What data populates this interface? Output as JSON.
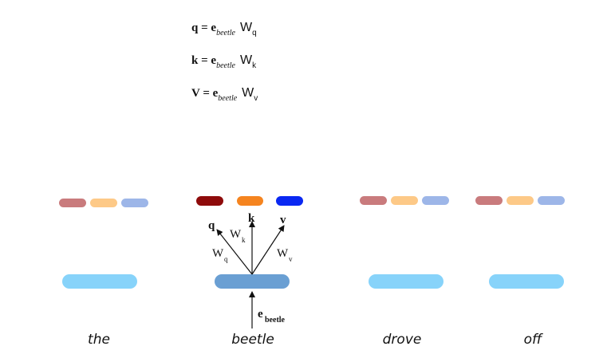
{
  "equations": [
    {
      "lhs": "q",
      "eq": " = ",
      "e": "e",
      "e_sub": "beetle",
      "w": "W",
      "w_sub": "q"
    },
    {
      "lhs": "k",
      "eq": " = ",
      "e": "e",
      "e_sub": "beetle",
      "w": "W",
      "w_sub": "k"
    },
    {
      "lhs": "V",
      "eq": " = ",
      "e": "e",
      "e_sub": "beetle",
      "w": "W",
      "w_sub": "v"
    }
  ],
  "words": [
    "the",
    "beetle",
    "drove",
    "off"
  ],
  "arrow_labels": {
    "q": "q",
    "k": "k",
    "v": "v",
    "wq_main": "W",
    "wq_sub": "q",
    "wk_main": "W",
    "wk_sub": "k",
    "wv_main": "W",
    "wv_sub": "v",
    "e_main": "e",
    "e_sub": "beetle"
  },
  "colors": {
    "embedding_other": "#87d3fa",
    "embedding_focus": "#6a9fd3",
    "q_faded": "#c97b7d",
    "k_faded": "#fdc987",
    "v_faded": "#9db6e8",
    "q_focus": "#8e0b0b",
    "k_focus": "#f5841f",
    "v_focus": "#0a28f2"
  }
}
